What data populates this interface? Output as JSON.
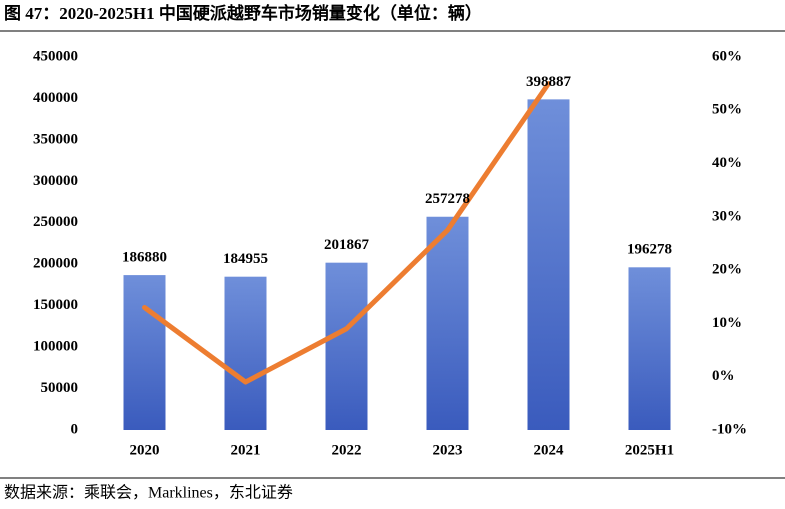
{
  "title": "图 47：2020-2025H1 中国硬派越野车市场销量变化（单位：辆）",
  "source": "数据来源：乘联会，Marklines，东北证券",
  "chart_data": {
    "type": "bar",
    "categories": [
      "2020",
      "2021",
      "2022",
      "2023",
      "2024",
      "2025H1"
    ],
    "series": [
      {
        "color": "#4a6bcb",
        "values": [
          186880,
          184955,
          201867,
          257278,
          398887,
          196278
        ]
      },
      {
        "type": "line",
        "axis": "y2",
        "color": "#ed7d31",
        "values": [
          13,
          -1,
          9,
          27.5,
          55,
          null
        ]
      }
    ],
    "ylim": [
      0,
      450000
    ],
    "yticks": [
      0,
      50000,
      100000,
      150000,
      200000,
      250000,
      300000,
      350000,
      400000,
      450000
    ],
    "y2lim": [
      -10,
      60
    ],
    "y2ticks": [
      {
        "value": -10,
        "label": "-10%"
      },
      {
        "value": 0,
        "label": "0%"
      },
      {
        "value": 10,
        "label": "10%"
      },
      {
        "value": 20,
        "label": "20%"
      },
      {
        "value": 30,
        "label": "30%"
      },
      {
        "value": 40,
        "label": "40%"
      },
      {
        "value": 50,
        "label": "50%"
      },
      {
        "value": 60,
        "label": "60%"
      }
    ]
  }
}
